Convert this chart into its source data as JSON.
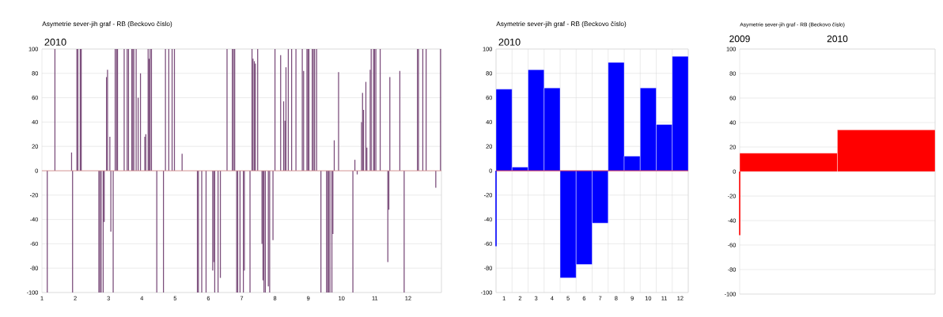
{
  "chart_data": [
    {
      "type": "bar",
      "title": "Asymetrie sever-jih  graf -  RB (Beckovo číslo)",
      "subtitle": "2010",
      "xlim": [
        1,
        13
      ],
      "ylim": [
        -100,
        100
      ],
      "grid": true,
      "xticks": [
        1,
        2,
        3,
        4,
        5,
        6,
        7,
        8,
        9,
        10,
        11,
        12,
        {
          "value": 13,
          "label": null
        }
      ],
      "yticks": [
        -100,
        -80,
        -60,
        -40,
        -20,
        0,
        20,
        40,
        60,
        80,
        100
      ],
      "ref_lines": [
        {
          "axis": "y",
          "value": 0,
          "color": "#d88a8a"
        }
      ],
      "series": [
        {
          "color": "#7b4d7b",
          "x": [
            1.16,
            1.39,
            1.89,
            1.92,
            2.05,
            2.08,
            2.15,
            2.18,
            2.71,
            2.74,
            2.78,
            2.84,
            2.87,
            2.94,
            2.97,
            3.04,
            3.07,
            3.14,
            3.2,
            3.24,
            3.27,
            3.47,
            3.56,
            3.6,
            3.7,
            3.73,
            3.76,
            3.83,
            3.89,
            3.96,
            4.09,
            4.12,
            4.19,
            4.22,
            4.25,
            4.29,
            4.45,
            4.65,
            4.71,
            4.81,
            4.91,
            4.98,
            5.21,
            5.67,
            5.7,
            5.8,
            5.93,
            6.13,
            6.16,
            6.19,
            6.29,
            6.36,
            6.56,
            6.72,
            6.75,
            6.79,
            6.85,
            6.88,
            6.95,
            7.05,
            7.08,
            7.25,
            7.31,
            7.34,
            7.38,
            7.41,
            7.48,
            7.61,
            7.64,
            7.67,
            7.71,
            7.8,
            7.84,
            7.94,
            8.0,
            8.17,
            8.26,
            8.3,
            8.33,
            8.4,
            8.5,
            8.63,
            8.82,
            8.86,
            8.96,
            8.99,
            9.02,
            9.12,
            9.15,
            9.19,
            9.25,
            9.38,
            9.55,
            9.58,
            9.61,
            9.65,
            9.71,
            9.74,
            9.78,
            9.91,
            10.34,
            10.4,
            10.47,
            10.6,
            10.63,
            10.66,
            10.73,
            10.76,
            10.86,
            10.89,
            10.96,
            10.99,
            11.03,
            11.16,
            11.39,
            11.42,
            11.45,
            11.75,
            11.88,
            12.28,
            12.31,
            12.44,
            12.54,
            12.83,
            12.97
          ],
          "values": [
            -100,
            100,
            15,
            -100,
            100,
            100,
            100,
            100,
            -100,
            -100,
            -100,
            -100,
            -42,
            77,
            83,
            28,
            -50,
            -100,
            100,
            100,
            100,
            100,
            100,
            100,
            100,
            100,
            100,
            100,
            60,
            80,
            28,
            30,
            100,
            92,
            100,
            100,
            -100,
            -100,
            100,
            100,
            100,
            100,
            14,
            -100,
            -100,
            -100,
            -100,
            -82,
            -75,
            -100,
            -100,
            -88,
            100,
            100,
            100,
            100,
            -100,
            -100,
            -100,
            -100,
            -82,
            -100,
            100,
            92,
            90,
            88,
            100,
            -60,
            -90,
            -100,
            -100,
            -95,
            -100,
            -57,
            100,
            95,
            57,
            41,
            85,
            100,
            100,
            100,
            100,
            82,
            100,
            100,
            100,
            100,
            100,
            100,
            100,
            -100,
            -100,
            -100,
            -100,
            -100,
            -100,
            -52,
            25,
            81,
            -100,
            9,
            -3,
            40,
            64,
            50,
            73,
            19,
            83,
            100,
            100,
            100,
            100,
            100,
            -75,
            -32,
            77,
            82,
            -100,
            100,
            100,
            100,
            100,
            -14,
            100
          ]
        }
      ]
    },
    {
      "type": "bar",
      "title": "Asymetrie sever-jih  graf -  RB (Beckovo číslo)",
      "subtitle": "2010",
      "xlim": [
        0.5,
        12.5
      ],
      "ylim": [
        -100,
        100
      ],
      "grid": true,
      "xticks": [
        {
          "value": 0.5,
          "label": null
        },
        {
          "value": 1.5,
          "label": null
        },
        {
          "value": 2.5,
          "label": null
        },
        {
          "value": 3.5,
          "label": null
        },
        {
          "value": 4.5,
          "label": null
        },
        {
          "value": 5.5,
          "label": null
        },
        {
          "value": 6.5,
          "label": null
        },
        {
          "value": 7.5,
          "label": null
        },
        {
          "value": 8.5,
          "label": null
        },
        {
          "value": 9.5,
          "label": null
        },
        {
          "value": 10.5,
          "label": null
        },
        {
          "value": 11.5,
          "label": null
        },
        {
          "value": 12.5,
          "label": null
        },
        1,
        2,
        3,
        4,
        5,
        6,
        7,
        8,
        9,
        10,
        11,
        12
      ],
      "yticks": [
        -100,
        -80,
        -60,
        -40,
        -20,
        0,
        20,
        40,
        60,
        80,
        100
      ],
      "ref_lines": [
        {
          "axis": "y",
          "value": 0,
          "color": "#cc0033"
        }
      ],
      "series": [
        {
          "color": "#0000ff",
          "x": [
            1,
            2,
            3,
            4,
            5,
            6,
            7,
            8,
            9,
            10,
            11,
            12
          ],
          "values": [
            67,
            3,
            83,
            68,
            -88,
            -77,
            -43,
            89,
            12,
            68,
            38,
            94
          ]
        },
        {
          "type": "line",
          "color": "#0000ff",
          "x": [
            0.5,
            0.5
          ],
          "values": [
            0,
            -62
          ]
        }
      ]
    },
    {
      "type": "bar",
      "title": "Asymetrie sever-jih  graf -  RB (Beckovo číslo)",
      "xlim": [
        2009,
        2011
      ],
      "ylim": [
        -100,
        100
      ],
      "grid": true,
      "xticks": [
        2009,
        2010,
        {
          "value": 2011,
          "label": null
        }
      ],
      "yticks": [
        -100,
        -80,
        -60,
        -40,
        -20,
        0,
        20,
        40,
        60,
        80,
        100
      ],
      "series": [
        {
          "color": "#ff0000",
          "x": [
            2009.5,
            2010.5
          ],
          "values": [
            15,
            34
          ]
        },
        {
          "type": "line",
          "color": "#ff0000",
          "x": [
            2009,
            2009
          ],
          "values": [
            0,
            -52
          ]
        }
      ]
    }
  ]
}
